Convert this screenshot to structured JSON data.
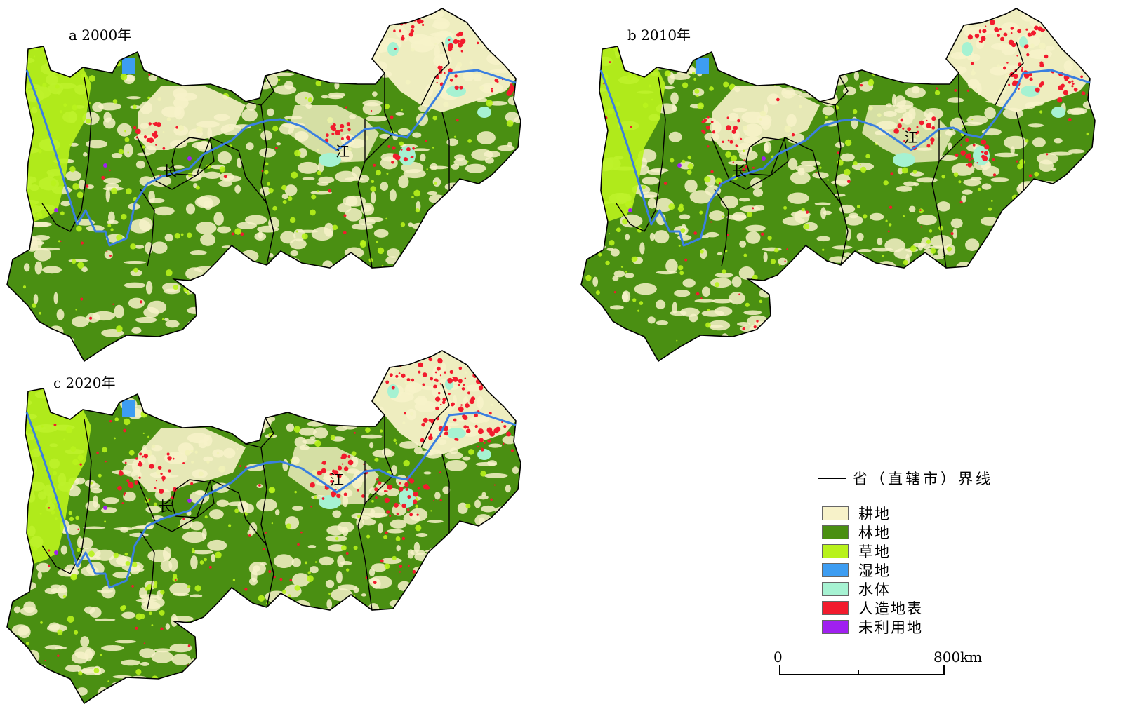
{
  "panels": [
    {
      "label": "a 2000年",
      "river_chars": [
        "长",
        "江"
      ]
    },
    {
      "label": "b 2010年",
      "river_chars": [
        "长",
        "江"
      ]
    },
    {
      "label": "c 2020年",
      "river_chars": [
        "长",
        "江"
      ]
    }
  ],
  "legend": {
    "boundary_label": "省（直辖市）界线",
    "items": [
      {
        "label": "耕地",
        "color": "#f7f2c9"
      },
      {
        "label": "林地",
        "color": "#4a8f12"
      },
      {
        "label": "草地",
        "color": "#b8f21c"
      },
      {
        "label": "湿地",
        "color": "#3d9df2"
      },
      {
        "label": "水体",
        "color": "#a6f2d2"
      },
      {
        "label": "人造地表",
        "color": "#f21b2d"
      },
      {
        "label": "未利用地",
        "color": "#a020f0"
      }
    ]
  },
  "scale": {
    "start": "0",
    "end": "800km"
  },
  "colors": {
    "river": "#3a7fe0",
    "boundary": "#000000"
  }
}
